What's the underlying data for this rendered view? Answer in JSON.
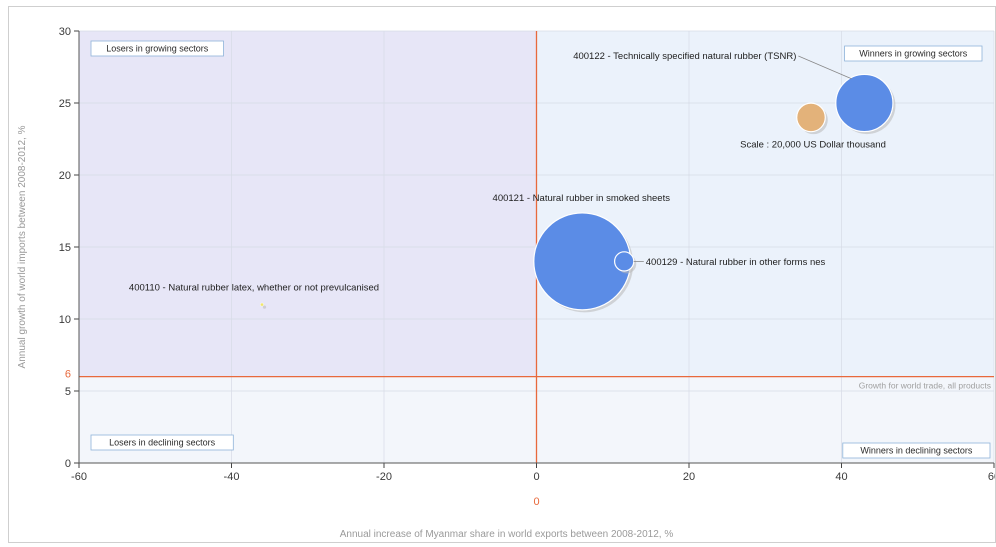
{
  "chart_data": {
    "type": "scatter",
    "xlabel": "Annual increase of Myanmar share in world exports between 2008-2012, %",
    "ylabel": "Annual growth of world imports between 2008-2012, %",
    "xlim": [
      -60,
      60
    ],
    "ylim": [
      0,
      30
    ],
    "x_ticks": [
      "-60",
      "-40",
      "-20",
      "0",
      "20",
      "40",
      "60"
    ],
    "y_ticks": [
      "0",
      "5",
      "10",
      "15",
      "20",
      "25",
      "30"
    ],
    "grid": true,
    "reference_lines": {
      "x": 0,
      "x_label": "0",
      "y": 6,
      "y_label": "6",
      "y_line_text": "Growth for world trade, all products",
      "color": "#e8693c"
    },
    "quadrants": {
      "top_left": "Losers in growing sectors",
      "top_right": "Winners in growing sectors",
      "bottom_left": "Losers in declining sectors",
      "bottom_right": "Winners in declining sectors"
    },
    "quadrant_colors": {
      "top_left": "#e7e6f7",
      "top_right": "#ebf2fb",
      "bottom_left": "#f3f6fb",
      "bottom_right": "#f3f6fb"
    },
    "points": [
      {
        "label": "400110 - Natural rubber latex, whether or not prevulcanised",
        "x": -36,
        "y": 11,
        "size": 150,
        "color": "#f0e66a"
      },
      {
        "label": "400121 - Natural rubber in smoked sheets",
        "x": 6,
        "y": 14,
        "size": 230000,
        "color": "#5b8ce6"
      },
      {
        "label": "400129 - Natural rubber in other forms nes",
        "x": 11.5,
        "y": 14,
        "size": 9000,
        "color": "#5b8ce6"
      },
      {
        "label": "400122 - Technically specified natural rubber (TSNR)",
        "x": 43,
        "y": 25,
        "size": 80000,
        "color": "#5b8ce6"
      }
    ],
    "scale": {
      "label": "Scale : 20,000 US Dollar thousand",
      "size": 20000,
      "x": 36,
      "y": 24,
      "color": "#e3b27a"
    }
  }
}
